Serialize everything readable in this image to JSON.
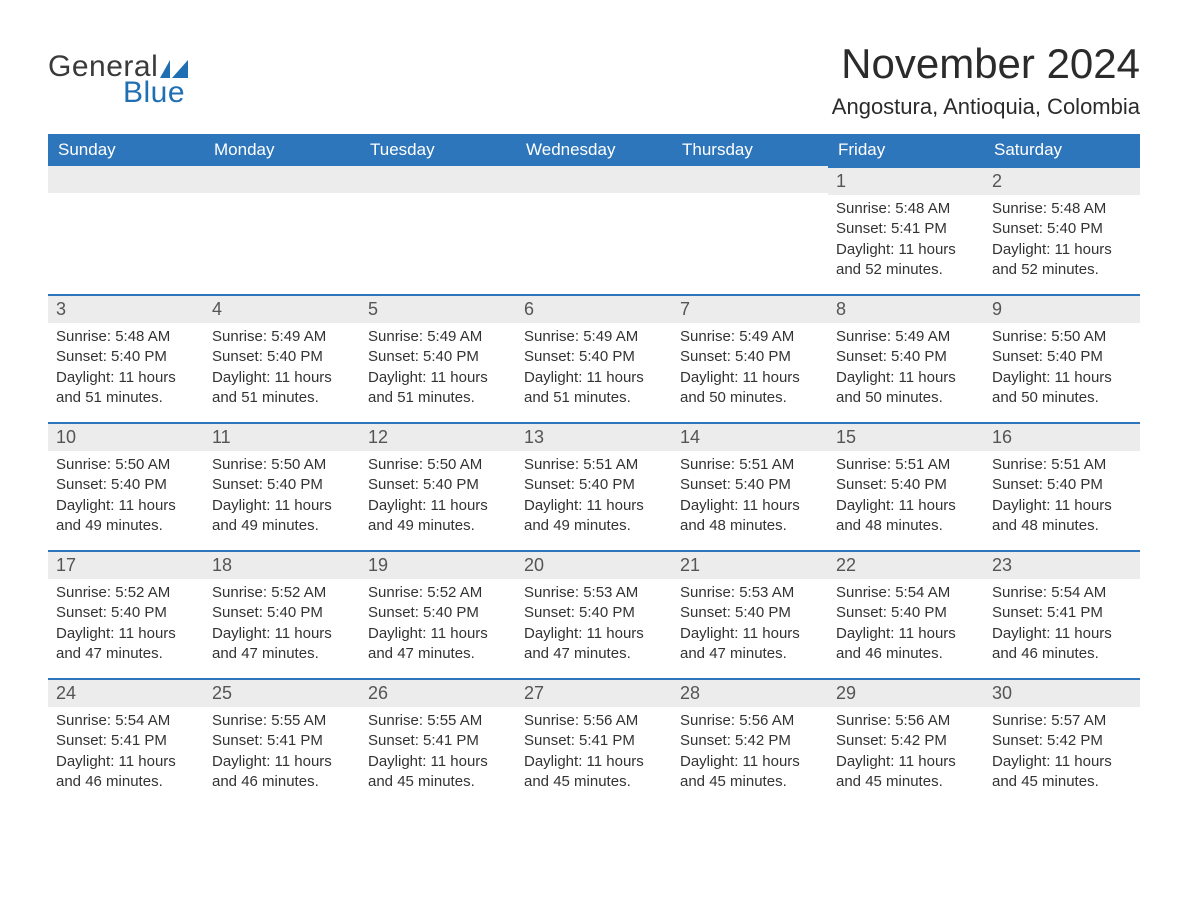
{
  "brand": {
    "word1": "General",
    "word2": "Blue",
    "flag_color": "#1f6fb2",
    "text_gray": "#3a3a3a"
  },
  "title": "November 2024",
  "location": "Angostura, Antioquia, Colombia",
  "colors": {
    "header_bg": "#2d76bb",
    "header_text": "#ffffff",
    "row_accent": "#2d76bb",
    "daynum_bg": "#ececec",
    "daynum_text": "#555555",
    "body_text": "#333333",
    "page_bg": "#ffffff"
  },
  "weekdays": [
    "Sunday",
    "Monday",
    "Tuesday",
    "Wednesday",
    "Thursday",
    "Friday",
    "Saturday"
  ],
  "weeks": [
    [
      null,
      null,
      null,
      null,
      null,
      {
        "n": "1",
        "sunrise": "5:48 AM",
        "sunset": "5:41 PM",
        "daylight": "11 hours and 52 minutes."
      },
      {
        "n": "2",
        "sunrise": "5:48 AM",
        "sunset": "5:40 PM",
        "daylight": "11 hours and 52 minutes."
      }
    ],
    [
      {
        "n": "3",
        "sunrise": "5:48 AM",
        "sunset": "5:40 PM",
        "daylight": "11 hours and 51 minutes."
      },
      {
        "n": "4",
        "sunrise": "5:49 AM",
        "sunset": "5:40 PM",
        "daylight": "11 hours and 51 minutes."
      },
      {
        "n": "5",
        "sunrise": "5:49 AM",
        "sunset": "5:40 PM",
        "daylight": "11 hours and 51 minutes."
      },
      {
        "n": "6",
        "sunrise": "5:49 AM",
        "sunset": "5:40 PM",
        "daylight": "11 hours and 51 minutes."
      },
      {
        "n": "7",
        "sunrise": "5:49 AM",
        "sunset": "5:40 PM",
        "daylight": "11 hours and 50 minutes."
      },
      {
        "n": "8",
        "sunrise": "5:49 AM",
        "sunset": "5:40 PM",
        "daylight": "11 hours and 50 minutes."
      },
      {
        "n": "9",
        "sunrise": "5:50 AM",
        "sunset": "5:40 PM",
        "daylight": "11 hours and 50 minutes."
      }
    ],
    [
      {
        "n": "10",
        "sunrise": "5:50 AM",
        "sunset": "5:40 PM",
        "daylight": "11 hours and 49 minutes."
      },
      {
        "n": "11",
        "sunrise": "5:50 AM",
        "sunset": "5:40 PM",
        "daylight": "11 hours and 49 minutes."
      },
      {
        "n": "12",
        "sunrise": "5:50 AM",
        "sunset": "5:40 PM",
        "daylight": "11 hours and 49 minutes."
      },
      {
        "n": "13",
        "sunrise": "5:51 AM",
        "sunset": "5:40 PM",
        "daylight": "11 hours and 49 minutes."
      },
      {
        "n": "14",
        "sunrise": "5:51 AM",
        "sunset": "5:40 PM",
        "daylight": "11 hours and 48 minutes."
      },
      {
        "n": "15",
        "sunrise": "5:51 AM",
        "sunset": "5:40 PM",
        "daylight": "11 hours and 48 minutes."
      },
      {
        "n": "16",
        "sunrise": "5:51 AM",
        "sunset": "5:40 PM",
        "daylight": "11 hours and 48 minutes."
      }
    ],
    [
      {
        "n": "17",
        "sunrise": "5:52 AM",
        "sunset": "5:40 PM",
        "daylight": "11 hours and 47 minutes."
      },
      {
        "n": "18",
        "sunrise": "5:52 AM",
        "sunset": "5:40 PM",
        "daylight": "11 hours and 47 minutes."
      },
      {
        "n": "19",
        "sunrise": "5:52 AM",
        "sunset": "5:40 PM",
        "daylight": "11 hours and 47 minutes."
      },
      {
        "n": "20",
        "sunrise": "5:53 AM",
        "sunset": "5:40 PM",
        "daylight": "11 hours and 47 minutes."
      },
      {
        "n": "21",
        "sunrise": "5:53 AM",
        "sunset": "5:40 PM",
        "daylight": "11 hours and 47 minutes."
      },
      {
        "n": "22",
        "sunrise": "5:54 AM",
        "sunset": "5:40 PM",
        "daylight": "11 hours and 46 minutes."
      },
      {
        "n": "23",
        "sunrise": "5:54 AM",
        "sunset": "5:41 PM",
        "daylight": "11 hours and 46 minutes."
      }
    ],
    [
      {
        "n": "24",
        "sunrise": "5:54 AM",
        "sunset": "5:41 PM",
        "daylight": "11 hours and 46 minutes."
      },
      {
        "n": "25",
        "sunrise": "5:55 AM",
        "sunset": "5:41 PM",
        "daylight": "11 hours and 46 minutes."
      },
      {
        "n": "26",
        "sunrise": "5:55 AM",
        "sunset": "5:41 PM",
        "daylight": "11 hours and 45 minutes."
      },
      {
        "n": "27",
        "sunrise": "5:56 AM",
        "sunset": "5:41 PM",
        "daylight": "11 hours and 45 minutes."
      },
      {
        "n": "28",
        "sunrise": "5:56 AM",
        "sunset": "5:42 PM",
        "daylight": "11 hours and 45 minutes."
      },
      {
        "n": "29",
        "sunrise": "5:56 AM",
        "sunset": "5:42 PM",
        "daylight": "11 hours and 45 minutes."
      },
      {
        "n": "30",
        "sunrise": "5:57 AM",
        "sunset": "5:42 PM",
        "daylight": "11 hours and 45 minutes."
      }
    ]
  ],
  "labels": {
    "sunrise": "Sunrise: ",
    "sunset": "Sunset: ",
    "daylight": "Daylight: "
  }
}
